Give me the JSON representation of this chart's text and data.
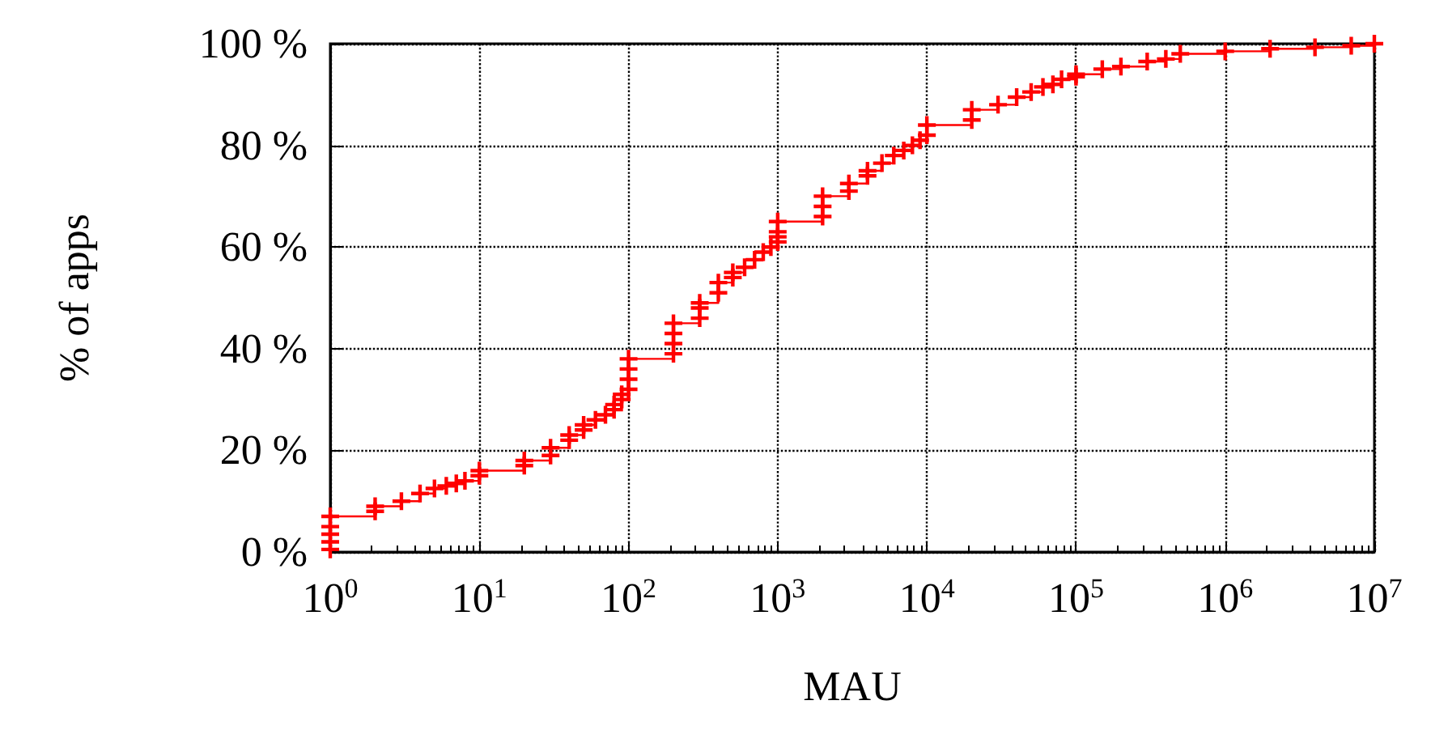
{
  "chart_data": {
    "type": "step",
    "xlabel": "MAU",
    "ylabel": "% of apps",
    "log": "x",
    "grid": true,
    "marker": "cross",
    "line_style": "solid",
    "xlim": [
      1,
      10000000
    ],
    "ylim": [
      0,
      100
    ],
    "xticks": [
      {
        "value": 1,
        "label": "10$^{0}$"
      },
      {
        "value": 10,
        "label": "10$^{1}$"
      },
      {
        "value": 100,
        "label": "10$^{2}$"
      },
      {
        "value": 1000,
        "label": "10$^{3}$"
      },
      {
        "value": 10000,
        "label": "10$^{4}$"
      },
      {
        "value": 100000,
        "label": "10$^{5}$"
      },
      {
        "value": 1000000,
        "label": "10$^{6}$"
      },
      {
        "value": 10000000,
        "label": "10$^{7}$"
      }
    ],
    "yticks": [
      {
        "value": 0,
        "label": "0 %"
      },
      {
        "value": 20,
        "label": "20 %"
      },
      {
        "value": 40,
        "label": "40 %"
      },
      {
        "value": 60,
        "label": "60 %"
      },
      {
        "value": 80,
        "label": "80 %"
      },
      {
        "value": 100,
        "label": "100 %"
      }
    ],
    "series": [
      {
        "color": "#ff0000",
        "x": [
          1,
          1,
          1,
          1,
          1,
          2,
          2,
          3,
          4,
          5,
          6,
          7,
          8,
          10,
          10,
          20,
          20,
          30,
          30,
          40,
          40,
          50,
          50,
          60,
          70,
          80,
          80,
          90,
          90,
          100,
          100,
          100,
          100,
          200,
          200,
          200,
          200,
          300,
          300,
          300,
          400,
          400,
          500,
          500,
          600,
          700,
          800,
          900,
          1000,
          1000,
          1000,
          1000,
          2000,
          2000,
          2000,
          3000,
          3000,
          4000,
          4000,
          5000,
          6000,
          7000,
          8000,
          9000,
          10000,
          10000,
          20000,
          20000,
          30000,
          40000,
          50000,
          60000,
          70000,
          80000,
          100000,
          100000,
          150000,
          200000,
          300000,
          400000,
          500000,
          1000000,
          2000000,
          4000000,
          7000000,
          10000000
        ],
        "values": [
          0.5,
          2,
          3.5,
          5,
          7,
          8,
          9,
          10,
          11.5,
          12.5,
          13,
          13.5,
          14,
          15,
          16,
          17,
          18,
          19,
          20.5,
          22,
          23,
          24,
          25,
          26,
          27,
          28,
          29,
          30,
          31,
          32,
          34,
          36,
          38,
          39,
          41,
          43,
          45,
          46,
          48,
          49,
          51,
          53,
          54,
          55,
          56,
          57.5,
          59,
          60,
          61,
          62,
          63,
          65,
          66,
          68,
          70,
          71,
          72.5,
          74,
          75,
          76.5,
          78,
          79,
          80,
          81,
          82,
          84,
          85,
          87,
          88,
          89.5,
          90.5,
          91.5,
          92,
          93,
          93.5,
          94,
          95,
          95.5,
          96.5,
          97,
          98,
          98.5,
          99,
          99.3,
          99.6,
          100
        ]
      }
    ]
  }
}
